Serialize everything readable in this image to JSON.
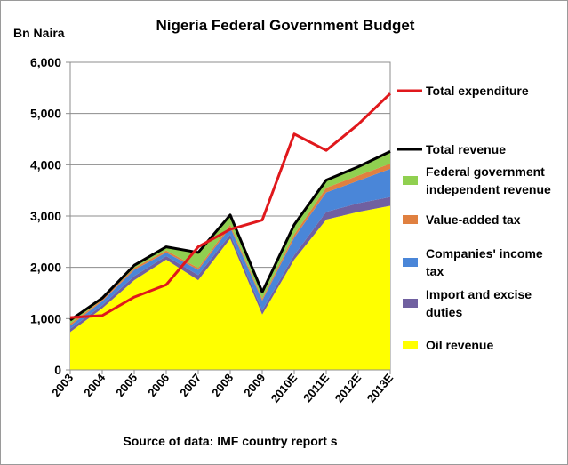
{
  "chart_data": {
    "type": "area",
    "title": "Nigeria Federal Government Budget",
    "ylabel": "Bn Naira",
    "source": "Source of data: IMF  country report s",
    "categories": [
      "2003",
      "2004",
      "2005",
      "2006",
      "2007",
      "2008",
      "2009",
      "2010E",
      "2011E",
      "2012E",
      "2013E"
    ],
    "ylim": [
      0,
      6000
    ],
    "yticks": [
      "0",
      "1,000",
      "2,000",
      "3,000",
      "4,000",
      "5,000",
      "6,000"
    ],
    "ytick_values": [
      0,
      1000,
      2000,
      3000,
      4000,
      5000,
      6000
    ],
    "grid": true,
    "legend_position": "right",
    "stacked_series": [
      {
        "name": "Oil revenue",
        "color": "#FFFF00",
        "values": [
          740,
          1200,
          1750,
          2150,
          1750,
          2560,
          1080,
          2150,
          2930,
          3080,
          3200
        ]
      },
      {
        "name": "Import and excise duties",
        "color": "#7060A0",
        "values": [
          60,
          60,
          80,
          70,
          100,
          80,
          80,
          90,
          150,
          170,
          170
        ]
      },
      {
        "name": "Companies' income tax",
        "color": "#4A86D8",
        "values": [
          60,
          80,
          120,
          70,
          100,
          140,
          190,
          340,
          380,
          440,
          550
        ]
      },
      {
        "name": "Value-added tax",
        "color": "#E08040",
        "values": [
          40,
          30,
          40,
          40,
          40,
          50,
          40,
          60,
          90,
          100,
          100
        ]
      },
      {
        "name": "Federal government independent revenue",
        "color": "#90D050",
        "values": [
          70,
          30,
          50,
          70,
          300,
          190,
          130,
          190,
          140,
          170,
          230
        ]
      }
    ],
    "lines": [
      {
        "name": "Total revenue",
        "color": "#000000",
        "values": [
          970,
          1400,
          2040,
          2400,
          2290,
          3020,
          1520,
          2830,
          3700,
          3960,
          4260
        ]
      },
      {
        "name": "Total expenditure",
        "color": "#E0181C",
        "values": [
          1020,
          1060,
          1420,
          1660,
          2400,
          2740,
          2920,
          4600,
          4280,
          4790,
          5390
        ]
      }
    ],
    "legend": [
      {
        "series": "Total expenditure",
        "kind": "line",
        "color": "#E0181C",
        "text": [
          "Total expenditure"
        ]
      },
      {
        "series": "Total revenue",
        "kind": "line",
        "color": "#000000",
        "text": [
          "Total revenue"
        ]
      },
      {
        "series": "Federal government independent revenue",
        "kind": "box",
        "color": "#90D050",
        "text": [
          "Federal government",
          "independent revenue"
        ]
      },
      {
        "series": "Value-added tax",
        "kind": "box",
        "color": "#E08040",
        "text": [
          "Value-added tax"
        ]
      },
      {
        "series": "Companies' income tax",
        "kind": "box",
        "color": "#4A86D8",
        "text": [
          "Companies' income",
          "tax"
        ]
      },
      {
        "series": "Import and excise duties",
        "kind": "box",
        "color": "#7060A0",
        "text": [
          "Import and excise",
          "duties"
        ]
      },
      {
        "series": "Oil revenue",
        "kind": "box",
        "color": "#FFFF00",
        "text": [
          "Oil revenue"
        ]
      }
    ]
  }
}
